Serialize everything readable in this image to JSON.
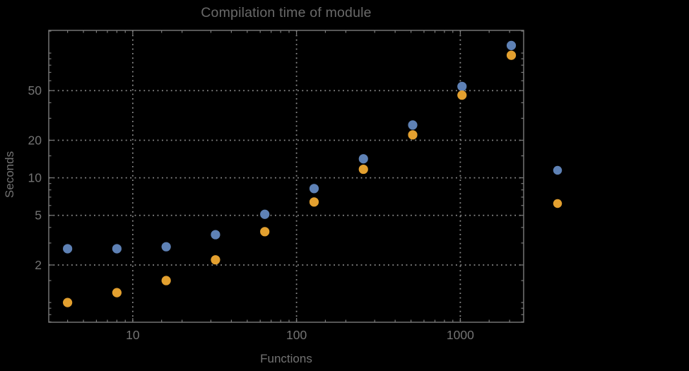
{
  "figure": {
    "background": "#000000",
    "text_color": "#737373",
    "frame_color": "#7c7c7c",
    "grid_color": "#8b8b8b"
  },
  "chart_data": {
    "type": "scatter",
    "title": "Compilation time of module",
    "xlabel": "Functions",
    "ylabel": "Seconds",
    "xscale": "log",
    "yscale": "log",
    "xlim": [
      3.07,
      2436
    ],
    "ylim": [
      0.695,
      152
    ],
    "grid": "dotted lines at major ticks, frame ticks on all four edges",
    "x_major_ticks": [
      10,
      100,
      1000
    ],
    "y_major_ticks": [
      2,
      5,
      10,
      20,
      50
    ],
    "x": [
      4,
      8,
      16,
      32,
      64,
      128,
      256,
      512,
      1024,
      2048
    ],
    "series": [
      {
        "name": "series-blue",
        "color": "#5E81B5",
        "marker": "circle",
        "values": [
          2.7,
          2.7,
          2.8,
          3.5,
          5.1,
          8.2,
          14.2,
          26.5,
          54,
          115
        ]
      },
      {
        "name": "series-orange",
        "color": "#E3A02F",
        "marker": "circle",
        "values": [
          1.0,
          1.2,
          1.5,
          2.2,
          3.7,
          6.4,
          11.7,
          22.1,
          46,
          96
        ]
      }
    ],
    "legend": {
      "position": "right of frame, markers only",
      "labels_visible": false,
      "marker_colors": [
        "#5E81B5",
        "#E3A02F"
      ]
    }
  }
}
